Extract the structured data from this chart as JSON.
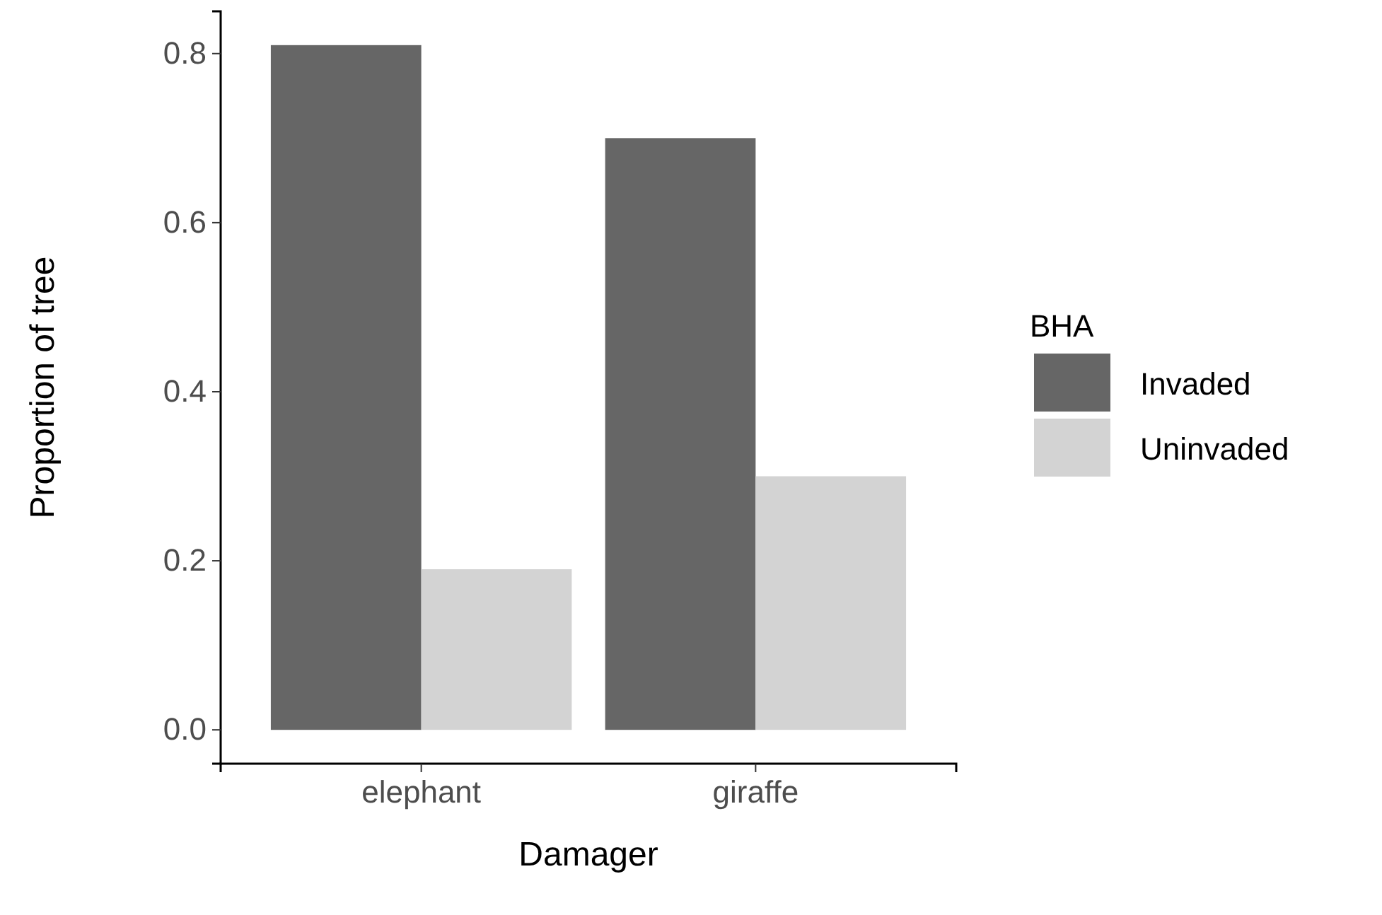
{
  "chart_data": {
    "type": "bar",
    "xlabel": "Damager",
    "ylabel": "Proportion of tree",
    "legend_title": "BHA",
    "legend": "right",
    "grid": false,
    "categories": [
      "elephant",
      "giraffe"
    ],
    "series": [
      {
        "name": "Invaded",
        "color": "#666666",
        "values": [
          0.81,
          0.7
        ]
      },
      {
        "name": "Uninvaded",
        "color": "#d3d3d3",
        "values": [
          0.19,
          0.3
        ]
      }
    ],
    "ylim": [
      -0.04,
      0.85
    ],
    "yticks": [
      {
        "value": 0,
        "label": "0.0"
      },
      0.2,
      0.4,
      0.6,
      0.8
    ]
  }
}
